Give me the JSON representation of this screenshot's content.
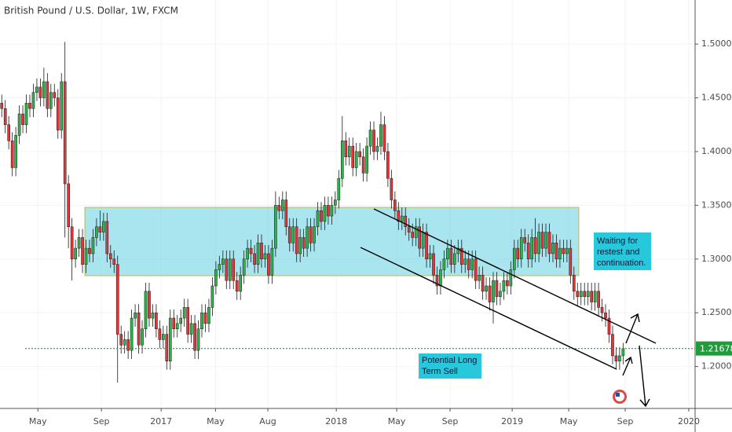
{
  "chart_data": {
    "type": "candlestick",
    "title": "British Pound / U.S. Dollar, 1W, FXCM",
    "up_color": "#2eb24a",
    "down_color": "#e0353a",
    "last_color": "#1f9d3a",
    "grid": true,
    "ylim": [
      1.161,
      1.541
    ],
    "yticks": [
      {
        "value": 1.2,
        "label": "1.20000"
      },
      {
        "value": 1.25,
        "label": "1.25000"
      },
      {
        "value": 1.3,
        "label": "1.30000"
      },
      {
        "value": 1.35,
        "label": "1.35000"
      },
      {
        "value": 1.4,
        "label": "1.40000"
      },
      {
        "value": 1.45,
        "label": "1.45000"
      },
      {
        "value": 1.5,
        "label": "1.50000"
      }
    ],
    "xlim": [
      -0.5,
      197.5
    ],
    "xticks": [
      {
        "value": 10.3,
        "label": "May"
      },
      {
        "value": 28.4,
        "label": "Sep"
      },
      {
        "value": 45.4,
        "label": "2017"
      },
      {
        "value": 60.9,
        "label": "May"
      },
      {
        "value": 75.8,
        "label": "Aug"
      },
      {
        "value": 95.3,
        "label": "2018"
      },
      {
        "value": 112.5,
        "label": "May"
      },
      {
        "value": 127.7,
        "label": "Sep"
      },
      {
        "value": 145.4,
        "label": "2019"
      },
      {
        "value": 161.5,
        "label": "May"
      },
      {
        "value": 177.6,
        "label": "Sep"
      },
      {
        "value": 195.7,
        "label": "2020"
      }
    ],
    "annotations": [
      {
        "text": [
          "Waiting for",
          "restest and",
          "continuation."
        ]
      },
      {
        "text": [
          "Potential Long",
          "Term Sell"
        ]
      }
    ],
    "open": [
      1.445,
      1.44,
      1.425,
      1.41,
      1.385,
      1.415,
      1.435,
      1.425,
      1.445,
      1.44,
      1.455,
      1.46,
      1.45,
      1.465,
      1.44,
      1.455,
      1.45,
      1.42,
      1.465,
      1.37,
      1.33,
      1.3,
      1.31,
      1.32,
      1.295,
      1.31,
      1.305,
      1.32,
      1.33,
      1.325,
      1.335,
      1.305,
      1.3,
      1.295,
      1.23,
      1.22,
      1.225,
      1.215,
      1.245,
      1.25,
      1.22,
      1.235,
      1.27,
      1.245,
      1.25,
      1.235,
      1.225,
      1.23,
      1.205,
      1.245,
      1.235,
      1.24,
      1.245,
      1.255,
      1.23,
      1.24,
      1.215,
      1.235,
      1.25,
      1.24,
      1.255,
      1.275,
      1.29,
      1.295,
      1.3,
      1.28,
      1.3,
      1.28,
      1.27,
      1.285,
      1.3,
      1.31,
      1.305,
      1.295,
      1.315,
      1.3,
      1.305,
      1.285,
      1.31,
      1.35,
      1.345,
      1.355,
      1.33,
      1.315,
      1.33,
      1.305,
      1.32,
      1.31,
      1.33,
      1.315,
      1.33,
      1.345,
      1.335,
      1.35,
      1.34,
      1.35,
      1.355,
      1.375,
      1.41,
      1.395,
      1.405,
      1.385,
      1.4,
      1.395,
      1.38,
      1.405,
      1.42,
      1.4,
      1.405,
      1.425,
      1.4,
      1.375,
      1.355,
      1.345,
      1.335,
      1.34,
      1.33,
      1.325,
      1.32,
      1.33,
      1.31,
      1.325,
      1.3,
      1.305,
      1.285,
      1.275,
      1.29,
      1.3,
      1.31,
      1.295,
      1.305,
      1.31,
      1.295,
      1.3,
      1.29,
      1.3,
      1.28,
      1.285,
      1.27,
      1.275,
      1.26,
      1.28,
      1.265,
      1.27,
      1.28,
      1.275,
      1.29,
      1.31,
      1.3,
      1.32,
      1.315,
      1.3,
      1.32,
      1.305,
      1.325,
      1.31,
      1.325,
      1.305,
      1.315,
      1.3,
      1.31,
      1.305,
      1.31,
      1.285,
      1.27,
      1.265,
      1.27,
      1.265,
      1.27,
      1.26,
      1.27,
      1.255,
      1.25,
      1.245,
      1.23,
      1.21,
      1.205,
      1.21
    ],
    "high": [
      1.453,
      1.448,
      1.433,
      1.418,
      1.423,
      1.443,
      1.443,
      1.453,
      1.453,
      1.463,
      1.468,
      1.468,
      1.478,
      1.473,
      1.463,
      1.463,
      1.458,
      1.473,
      1.502,
      1.378,
      1.338,
      1.318,
      1.328,
      1.328,
      1.318,
      1.318,
      1.328,
      1.338,
      1.345,
      1.343,
      1.343,
      1.313,
      1.308,
      1.303,
      1.238,
      1.233,
      1.233,
      1.253,
      1.258,
      1.258,
      1.243,
      1.278,
      1.278,
      1.258,
      1.258,
      1.243,
      1.238,
      1.238,
      1.253,
      1.253,
      1.248,
      1.253,
      1.263,
      1.263,
      1.248,
      1.248,
      1.243,
      1.258,
      1.258,
      1.263,
      1.283,
      1.298,
      1.303,
      1.308,
      1.308,
      1.308,
      1.308,
      1.288,
      1.293,
      1.308,
      1.318,
      1.318,
      1.313,
      1.323,
      1.323,
      1.313,
      1.313,
      1.318,
      1.363,
      1.358,
      1.363,
      1.363,
      1.338,
      1.338,
      1.338,
      1.328,
      1.328,
      1.338,
      1.338,
      1.338,
      1.353,
      1.353,
      1.358,
      1.358,
      1.358,
      1.363,
      1.383,
      1.433,
      1.418,
      1.413,
      1.413,
      1.408,
      1.408,
      1.403,
      1.413,
      1.428,
      1.428,
      1.413,
      1.437,
      1.433,
      1.408,
      1.383,
      1.363,
      1.353,
      1.348,
      1.348,
      1.338,
      1.333,
      1.338,
      1.338,
      1.333,
      1.333,
      1.313,
      1.313,
      1.293,
      1.298,
      1.308,
      1.318,
      1.318,
      1.313,
      1.318,
      1.318,
      1.308,
      1.308,
      1.308,
      1.308,
      1.293,
      1.293,
      1.283,
      1.283,
      1.288,
      1.288,
      1.278,
      1.288,
      1.288,
      1.298,
      1.318,
      1.318,
      1.328,
      1.328,
      1.323,
      1.328,
      1.338,
      1.333,
      1.333,
      1.333,
      1.333,
      1.323,
      1.323,
      1.318,
      1.318,
      1.318,
      1.318,
      1.293,
      1.278,
      1.278,
      1.278,
      1.278,
      1.278,
      1.278,
      1.278,
      1.263,
      1.258,
      1.253,
      1.238,
      1.218,
      1.218,
      1.222
    ],
    "low": [
      1.432,
      1.417,
      1.402,
      1.377,
      1.377,
      1.407,
      1.417,
      1.417,
      1.432,
      1.432,
      1.447,
      1.442,
      1.442,
      1.432,
      1.432,
      1.442,
      1.412,
      1.412,
      1.32,
      1.31,
      1.28,
      1.292,
      1.302,
      1.287,
      1.287,
      1.297,
      1.297,
      1.312,
      1.317,
      1.317,
      1.297,
      1.292,
      1.287,
      1.185,
      1.212,
      1.212,
      1.207,
      1.207,
      1.237,
      1.212,
      1.212,
      1.227,
      1.237,
      1.237,
      1.227,
      1.217,
      1.217,
      1.197,
      1.197,
      1.227,
      1.227,
      1.232,
      1.237,
      1.222,
      1.222,
      1.207,
      1.207,
      1.227,
      1.232,
      1.232,
      1.247,
      1.267,
      1.282,
      1.287,
      1.272,
      1.272,
      1.272,
      1.262,
      1.262,
      1.277,
      1.292,
      1.297,
      1.287,
      1.287,
      1.292,
      1.292,
      1.277,
      1.277,
      1.302,
      1.337,
      1.337,
      1.322,
      1.307,
      1.307,
      1.297,
      1.297,
      1.302,
      1.302,
      1.307,
      1.307,
      1.322,
      1.327,
      1.327,
      1.332,
      1.332,
      1.342,
      1.347,
      1.367,
      1.387,
      1.387,
      1.377,
      1.377,
      1.387,
      1.372,
      1.372,
      1.397,
      1.392,
      1.392,
      1.397,
      1.392,
      1.367,
      1.347,
      1.337,
      1.327,
      1.327,
      1.322,
      1.317,
      1.312,
      1.312,
      1.302,
      1.302,
      1.292,
      1.292,
      1.277,
      1.267,
      1.267,
      1.282,
      1.292,
      1.287,
      1.287,
      1.297,
      1.287,
      1.287,
      1.282,
      1.282,
      1.272,
      1.272,
      1.262,
      1.262,
      1.252,
      1.24,
      1.257,
      1.257,
      1.262,
      1.267,
      1.267,
      1.282,
      1.292,
      1.292,
      1.307,
      1.292,
      1.292,
      1.297,
      1.297,
      1.302,
      1.302,
      1.297,
      1.297,
      1.292,
      1.292,
      1.297,
      1.297,
      1.277,
      1.262,
      1.257,
      1.257,
      1.257,
      1.257,
      1.252,
      1.252,
      1.247,
      1.242,
      1.237,
      1.222,
      1.202,
      1.197,
      1.197,
      1.202
    ],
    "close": [
      1.44,
      1.425,
      1.41,
      1.385,
      1.415,
      1.435,
      1.425,
      1.445,
      1.44,
      1.455,
      1.46,
      1.45,
      1.465,
      1.44,
      1.455,
      1.45,
      1.42,
      1.465,
      1.37,
      1.33,
      1.3,
      1.31,
      1.32,
      1.295,
      1.31,
      1.305,
      1.32,
      1.33,
      1.325,
      1.335,
      1.305,
      1.3,
      1.295,
      1.23,
      1.22,
      1.225,
      1.215,
      1.245,
      1.25,
      1.22,
      1.235,
      1.27,
      1.245,
      1.25,
      1.235,
      1.225,
      1.23,
      1.205,
      1.245,
      1.235,
      1.24,
      1.245,
      1.255,
      1.23,
      1.24,
      1.215,
      1.235,
      1.25,
      1.24,
      1.255,
      1.275,
      1.29,
      1.295,
      1.3,
      1.28,
      1.3,
      1.28,
      1.27,
      1.285,
      1.3,
      1.31,
      1.305,
      1.295,
      1.315,
      1.3,
      1.305,
      1.285,
      1.31,
      1.35,
      1.345,
      1.355,
      1.33,
      1.315,
      1.33,
      1.305,
      1.32,
      1.31,
      1.33,
      1.315,
      1.33,
      1.345,
      1.335,
      1.35,
      1.34,
      1.35,
      1.355,
      1.375,
      1.41,
      1.395,
      1.405,
      1.385,
      1.4,
      1.395,
      1.38,
      1.405,
      1.42,
      1.4,
      1.405,
      1.425,
      1.4,
      1.375,
      1.355,
      1.345,
      1.335,
      1.34,
      1.33,
      1.325,
      1.32,
      1.33,
      1.31,
      1.325,
      1.3,
      1.305,
      1.285,
      1.275,
      1.29,
      1.3,
      1.31,
      1.295,
      1.305,
      1.31,
      1.295,
      1.3,
      1.29,
      1.3,
      1.28,
      1.285,
      1.27,
      1.275,
      1.26,
      1.28,
      1.265,
      1.27,
      1.28,
      1.275,
      1.29,
      1.31,
      1.3,
      1.32,
      1.315,
      1.3,
      1.32,
      1.305,
      1.325,
      1.31,
      1.325,
      1.305,
      1.315,
      1.3,
      1.31,
      1.305,
      1.31,
      1.285,
      1.27,
      1.265,
      1.27,
      1.265,
      1.27,
      1.26,
      1.27,
      1.255,
      1.25,
      1.245,
      1.23,
      1.21,
      1.205,
      1.21,
      1.21678
    ]
  }
}
